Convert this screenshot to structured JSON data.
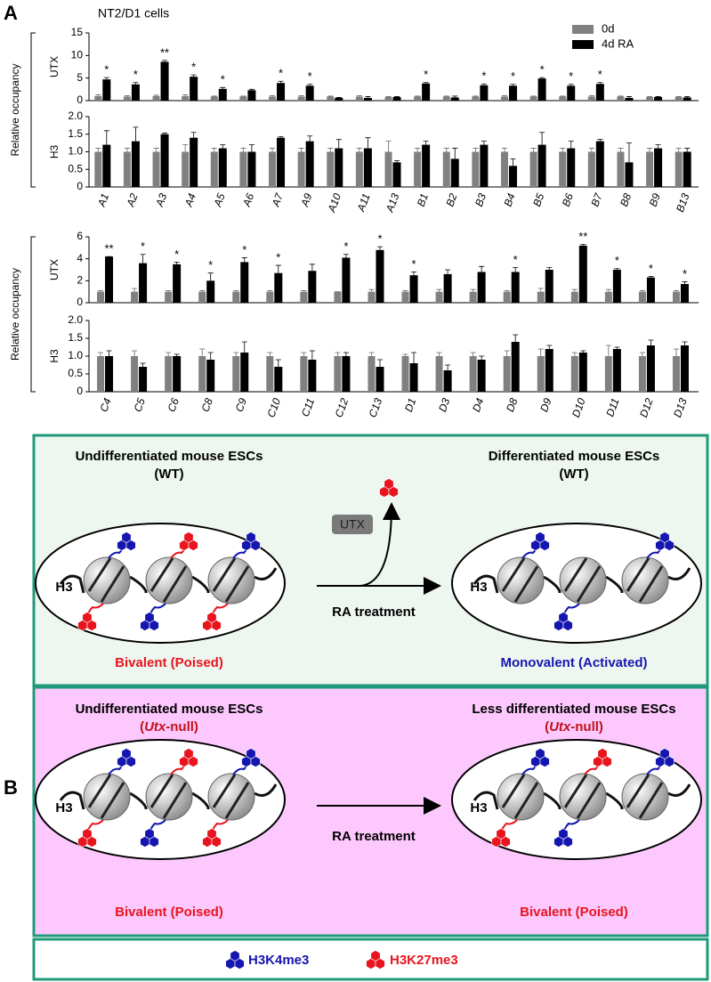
{
  "panel_a": {
    "label": "A",
    "title": "NT2/D1 cells",
    "ylabel": "Relative occupancy",
    "legend": [
      {
        "name": "0d",
        "color": "#808080"
      },
      {
        "name": "4d RA",
        "color": "#000000"
      }
    ]
  },
  "chart_data": [
    {
      "type": "bar",
      "ylabel": "UTX",
      "ylim": [
        0,
        15
      ],
      "yticks": [
        0,
        5,
        10,
        15
      ],
      "series": [
        {
          "color": "#808080",
          "values": [
            1.0,
            0.9,
            1.0,
            1.0,
            0.9,
            0.9,
            0.9,
            0.9,
            0.9,
            0.9,
            0.8,
            0.9,
            0.9,
            0.9,
            0.9,
            0.9,
            0.9,
            0.9,
            0.9,
            0.8,
            0.8
          ],
          "errors": [
            0.3,
            0.2,
            0.2,
            0.3,
            0.1,
            0.1,
            0.2,
            0.2,
            0.1,
            0.2,
            0.1,
            0.1,
            0.1,
            0.1,
            0.2,
            0.1,
            0.1,
            0.2,
            0.1,
            0.1,
            0.1
          ]
        },
        {
          "color": "#000000",
          "values": [
            4.7,
            3.6,
            8.6,
            5.3,
            2.6,
            2.3,
            3.9,
            3.3,
            0.6,
            0.6,
            0.8,
            3.8,
            0.7,
            3.4,
            3.3,
            4.9,
            3.3,
            3.7,
            0.6,
            0.8,
            0.7
          ],
          "errors": [
            0.4,
            0.4,
            0.3,
            0.4,
            0.3,
            0.2,
            0.4,
            0.3,
            0.1,
            0.3,
            0.1,
            0.2,
            0.3,
            0.3,
            0.3,
            0.2,
            0.3,
            0.3,
            0.3,
            0.1,
            0.2
          ]
        }
      ],
      "significance": [
        "*",
        "*",
        "**",
        "*",
        "*",
        null,
        "*",
        "*",
        null,
        null,
        null,
        "*",
        null,
        "*",
        "*",
        "*",
        "*",
        "*",
        null,
        null,
        null
      ]
    },
    {
      "type": "bar",
      "ylabel": "H3",
      "ylim": [
        0,
        2
      ],
      "yticks": [
        0,
        0.5,
        {
          "value": 1,
          "label": "1.0"
        },
        1.5,
        {
          "value": 2,
          "label": "2.0"
        }
      ],
      "categories": [
        "A1",
        "A2",
        "A3",
        "A4",
        "A5",
        "A6",
        "A7",
        "A9",
        "A10",
        "A11",
        "A13",
        "B1",
        "B2",
        "B3",
        "B4",
        "B5",
        "B6",
        "B7",
        "B8",
        "B9",
        "B13"
      ],
      "series": [
        {
          "color": "#808080",
          "values": [
            1.0,
            1.0,
            1.0,
            1.0,
            1.0,
            1.0,
            1.0,
            1.0,
            1.0,
            1.0,
            1.0,
            1.0,
            1.0,
            1.0,
            1.0,
            1.0,
            1.0,
            1.0,
            1.0,
            1.0,
            1.0
          ],
          "errors": [
            0.1,
            0.1,
            0.1,
            0.2,
            0.1,
            0.1,
            0.1,
            0.1,
            0.1,
            0.1,
            0.3,
            0.1,
            0.1,
            0.1,
            0.1,
            0.1,
            0.1,
            0.1,
            0.1,
            0.1,
            0.1
          ]
        },
        {
          "color": "#000000",
          "values": [
            1.2,
            1.3,
            1.5,
            1.4,
            1.1,
            1.0,
            1.4,
            1.3,
            1.1,
            1.1,
            0.7,
            1.2,
            0.8,
            1.2,
            0.6,
            1.2,
            1.1,
            1.3,
            0.7,
            1.1,
            1.0
          ],
          "errors": [
            0.4,
            0.4,
            0.03,
            0.15,
            0.1,
            0.2,
            0.03,
            0.15,
            0.25,
            0.3,
            0.05,
            0.1,
            0.3,
            0.1,
            0.2,
            0.35,
            0.2,
            0.05,
            0.55,
            0.1,
            0.1
          ]
        }
      ]
    },
    {
      "type": "bar",
      "ylabel": "UTX",
      "ylim": [
        0,
        6
      ],
      "yticks": [
        0,
        2,
        4,
        6
      ],
      "series": [
        {
          "color": "#808080",
          "values": [
            1.0,
            1.0,
            1.0,
            1.0,
            1.0,
            1.0,
            1.0,
            1.0,
            1.0,
            1.0,
            1.0,
            1.0,
            1.0,
            1.0,
            1.0,
            1.0,
            1.0,
            1.0
          ],
          "errors": [
            0.1,
            0.3,
            0.1,
            0.1,
            0.1,
            0.1,
            0.1,
            0.0,
            0.2,
            0.1,
            0.2,
            0.2,
            0.1,
            0.3,
            0.2,
            0.2,
            0.1,
            0.1
          ]
        },
        {
          "color": "#000000",
          "values": [
            4.2,
            3.6,
            3.5,
            2.0,
            3.7,
            2.7,
            2.9,
            4.1,
            4.8,
            2.5,
            2.6,
            2.8,
            2.8,
            3.0,
            5.2,
            3.0,
            2.3,
            1.7
          ],
          "errors": [
            0.0,
            0.8,
            0.2,
            0.7,
            0.4,
            0.7,
            0.6,
            0.3,
            0.3,
            0.3,
            0.4,
            0.5,
            0.4,
            0.2,
            0.1,
            0.1,
            0.1,
            0.2
          ]
        }
      ],
      "significance": [
        "**",
        "*",
        "*",
        "*",
        "*",
        "*",
        null,
        "*",
        "*",
        "*",
        null,
        null,
        "*",
        null,
        "**",
        "*",
        "*",
        "*"
      ]
    },
    {
      "type": "bar",
      "ylabel": "H3",
      "ylim": [
        0,
        2
      ],
      "yticks": [
        0,
        0.5,
        {
          "value": 1,
          "label": "1.0"
        },
        1.5,
        {
          "value": 2,
          "label": "2.0"
        }
      ],
      "categories": [
        "C4",
        "C5",
        "C6",
        "C8",
        "C9",
        "C10",
        "C11",
        "C12",
        "C13",
        "D1",
        "D3",
        "D4",
        "D8",
        "D9",
        "D10",
        "D11",
        "D12",
        "D13"
      ],
      "series": [
        {
          "color": "#808080",
          "values": [
            1.0,
            1.0,
            1.0,
            1.0,
            1.0,
            1.0,
            1.0,
            1.0,
            1.0,
            1.0,
            1.0,
            1.0,
            1.0,
            1.0,
            1.0,
            1.0,
            1.0,
            1.0
          ],
          "errors": [
            0.1,
            0.15,
            0.1,
            0.2,
            0.1,
            0.1,
            0.1,
            0.1,
            0.1,
            0.05,
            0.1,
            0.1,
            0.15,
            0.2,
            0.1,
            0.3,
            0.1,
            0.2
          ]
        },
        {
          "color": "#000000",
          "values": [
            1.0,
            0.7,
            1.0,
            0.9,
            1.1,
            0.7,
            0.9,
            1.0,
            0.7,
            0.8,
            0.6,
            0.9,
            1.4,
            1.2,
            1.1,
            1.2,
            1.3,
            1.3
          ],
          "errors": [
            0.15,
            0.1,
            0.05,
            0.2,
            0.3,
            0.2,
            0.25,
            0.1,
            0.2,
            0.3,
            0.15,
            0.1,
            0.2,
            0.1,
            0.05,
            0.05,
            0.15,
            0.1
          ]
        }
      ]
    }
  ],
  "panel_b": {
    "label": "B",
    "wt": {
      "left_title": "Undifferentiated mouse ESCs",
      "left_subtitle": "(WT)",
      "right_title": "Differentiated mouse ESCs",
      "right_subtitle": "(WT)",
      "enzyme": "UTX",
      "treatment": "RA treatment",
      "histone_left": "H3",
      "histone_right": "H3",
      "left_state": "Bivalent (Poised)",
      "right_state": "Monovalent (Activated)"
    },
    "null": {
      "left_title": "Undifferentiated mouse ESCs",
      "left_subtitle": [
        "(",
        "Utx",
        "-null)"
      ],
      "right_title": "Less differentiated mouse ESCs",
      "right_subtitle": [
        "(",
        "Utx",
        "-null)"
      ],
      "treatment": "RA treatment",
      "histone_left": "H3",
      "histone_right": "H3",
      "left_state": "Bivalent (Poised)",
      "right_state": "Bivalent (Poised)"
    },
    "legend": [
      "H3K4me3",
      "H3K27me3"
    ]
  }
}
